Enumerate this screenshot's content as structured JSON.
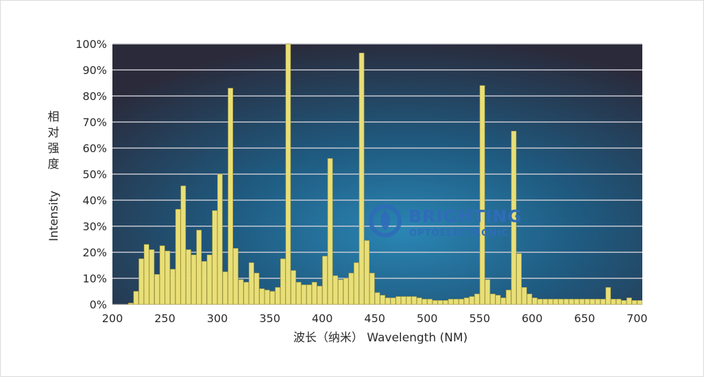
{
  "chart_data": {
    "type": "bar",
    "xlabel": "波长（纳米） Wavelength (NM)",
    "ylabel_en": "Intensity",
    "ylabel_cn": "相对强度",
    "xlim": [
      200,
      705
    ],
    "ylim": [
      0,
      100
    ],
    "x_ticks": [
      200,
      250,
      300,
      350,
      400,
      450,
      500,
      550,
      600,
      650,
      700
    ],
    "y_ticks": [
      0,
      10,
      20,
      30,
      40,
      50,
      60,
      70,
      80,
      90,
      100
    ],
    "y_tick_labels": [
      "0%",
      "10%",
      "20%",
      "30%",
      "40%",
      "50%",
      "60%",
      "70%",
      "80%",
      "90%",
      "100%"
    ],
    "grid": true,
    "bar_color": "#e8df78",
    "bar_edge_color": "#a89a3a",
    "background_center": "#2a86b4",
    "background_edge": "#2a2a3a",
    "x": [
      217.5,
      222.5,
      227.5,
      232.5,
      237.5,
      242.5,
      247.5,
      252.5,
      257.5,
      262.5,
      267.5,
      272.5,
      277.5,
      282.5,
      287.5,
      292.5,
      297.5,
      302.5,
      307.5,
      312.5,
      317.5,
      322.5,
      327.5,
      332.5,
      337.5,
      342.5,
      347.5,
      352.5,
      357.5,
      362.5,
      367.5,
      372.5,
      377.5,
      382.5,
      387.5,
      392.5,
      397.5,
      402.5,
      407.5,
      412.5,
      417.5,
      422.5,
      427.5,
      432.5,
      437.5,
      442.5,
      447.5,
      452.5,
      457.5,
      462.5,
      467.5,
      472.5,
      477.5,
      482.5,
      487.5,
      492.5,
      497.5,
      502.5,
      507.5,
      512.5,
      517.5,
      522.5,
      527.5,
      532.5,
      537.5,
      542.5,
      547.5,
      552.5,
      557.5,
      562.5,
      567.5,
      572.5,
      577.5,
      582.5,
      587.5,
      592.5,
      597.5,
      602.5,
      607.5,
      612.5,
      617.5,
      622.5,
      627.5,
      632.5,
      637.5,
      642.5,
      647.5,
      652.5,
      657.5,
      662.5,
      667.5,
      672.5,
      677.5,
      682.5,
      687.5,
      692.5,
      697.5,
      702.5
    ],
    "values": [
      0.5,
      5,
      17.5,
      23,
      21,
      11.5,
      22.5,
      20.5,
      13.5,
      36.5,
      45.5,
      21,
      19,
      28.5,
      16.5,
      19,
      36,
      50,
      12.5,
      83,
      21.5,
      9.5,
      8.5,
      16,
      12,
      6,
      5.5,
      5,
      6.5,
      17.5,
      100,
      13,
      8.5,
      7.5,
      7.5,
      8.5,
      7,
      18.5,
      56,
      11,
      9.5,
      10,
      12,
      16,
      96.5,
      24.5,
      12,
      4.5,
      3.5,
      2.5,
      2.5,
      3,
      3,
      3,
      3,
      2.5,
      2,
      2,
      1.5,
      1.5,
      1.5,
      2,
      2,
      2,
      2.5,
      3,
      4,
      84,
      9.5,
      4,
      3.5,
      2.5,
      5.5,
      66.5,
      19.5,
      6.5,
      4,
      2.5,
      2,
      2,
      2,
      2,
      2,
      2,
      2,
      2,
      2,
      2,
      2,
      2,
      2,
      6.5,
      2,
      2,
      1.5,
      2.5,
      1.5,
      1.5
    ]
  },
  "logo": {
    "name": "BRIGHTING",
    "tagline": "OPTOELECTRONIC"
  }
}
